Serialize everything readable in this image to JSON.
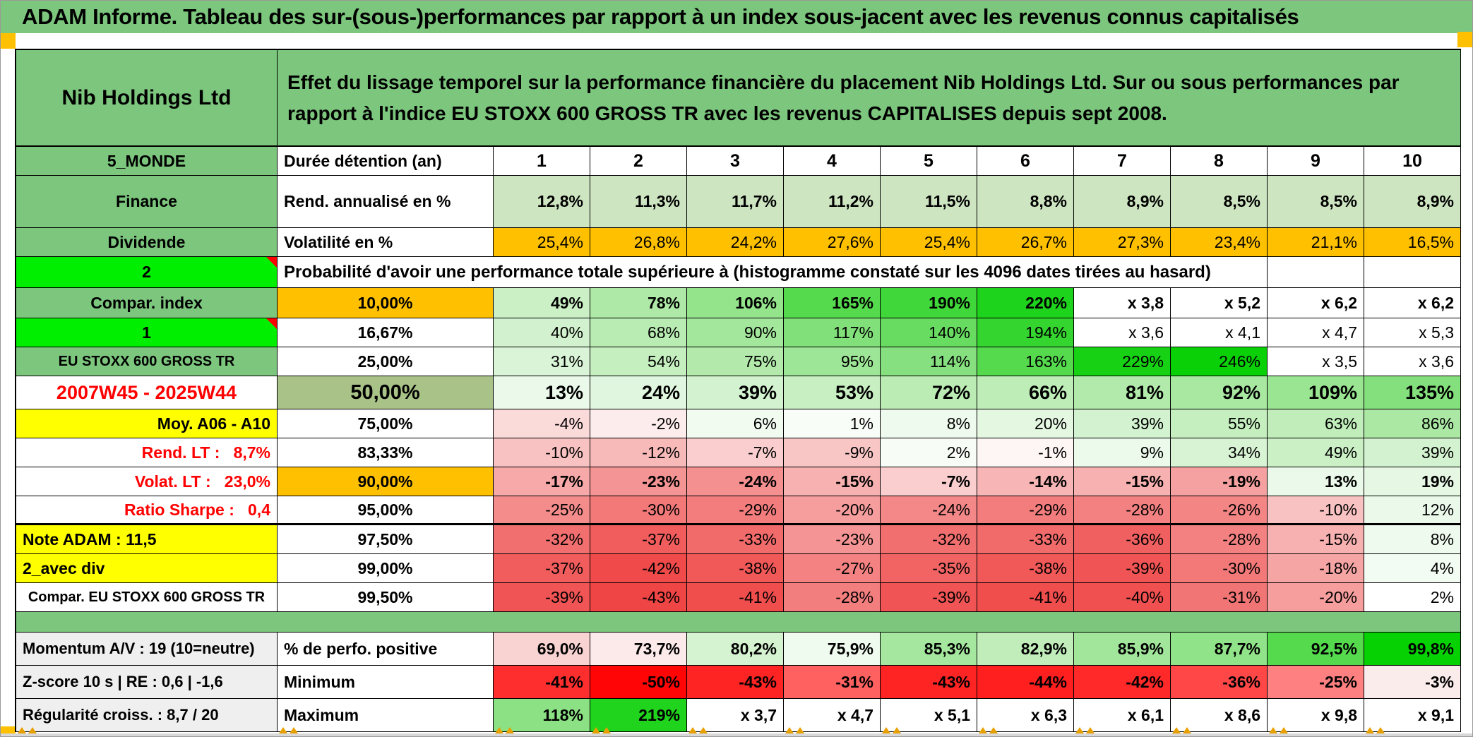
{
  "title": "ADAM Informe. Tableau des sur-(sous-)performances par rapport à un index sous-jacent avec les revenus connus capitalisés",
  "header": {
    "instrument": "Nib Holdings Ltd",
    "description": "Effet du lissage temporel sur la performance financière du placement Nib Holdings Ltd. Sur ou sous performances par rapport à l'indice EU STOXX 600 GROSS TR avec les revenus CAPITALISES depuis sept 2008."
  },
  "colors": {
    "green_label": "#7CC67D",
    "bright_green": "#00EE00",
    "orange": "#FFC000",
    "yellow": "#FFFF00",
    "olive_green": "#A9C287",
    "light_green_data": "#CEE5C2",
    "gray_label": "#EFEFEF",
    "red_text": "#FF0000"
  },
  "table": {
    "rows": [
      {
        "id": "duree",
        "left": {
          "t": "5_MONDE",
          "bg": "#7CC67D",
          "b": 1,
          "al": "c"
        },
        "mid": {
          "t": "Durée détention (an)",
          "b": 1,
          "al": "l"
        },
        "al": "c",
        "b": 1,
        "fs": 25,
        "v": [
          "1",
          "2",
          "3",
          "4",
          "5",
          "6",
          "7",
          "8",
          "9",
          "10"
        ],
        "bg": [
          "#FFFFFF",
          "#FFFFFF",
          "#FFFFFF",
          "#FFFFFF",
          "#FFFFFF",
          "#FFFFFF",
          "#FFFFFF",
          "#FFFFFF",
          "#FFFFFF",
          "#FFFFFF"
        ]
      },
      {
        "id": "rend",
        "left": {
          "t": "Finance",
          "bg": "#7CC67D",
          "b": 1,
          "al": "c"
        },
        "mid": {
          "t": "Rend. annualisé en %",
          "b": 1,
          "al": "l"
        },
        "b": 1,
        "v": [
          "12,8%",
          "11,3%",
          "11,7%",
          "11,2%",
          "11,5%",
          "8,8%",
          "8,9%",
          "8,5%",
          "8,5%",
          "8,9%"
        ],
        "bg": [
          "#CEE5C2",
          "#CEE5C2",
          "#CEE5C2",
          "#CEE5C2",
          "#CEE5C2",
          "#CEE5C2",
          "#CEE5C2",
          "#CEE5C2",
          "#CEE5C2",
          "#CEE5C2"
        ]
      },
      {
        "id": "vol",
        "left": {
          "t": "Dividende",
          "bg": "#7CC67D",
          "b": 1,
          "al": "c"
        },
        "mid": {
          "t": "Volatilité en %",
          "b": 1,
          "al": "l"
        },
        "v": [
          "25,4%",
          "26,8%",
          "24,2%",
          "27,6%",
          "25,4%",
          "26,7%",
          "27,3%",
          "23,4%",
          "21,1%",
          "16,5%"
        ],
        "bg": [
          "#FFC000",
          "#FFC000",
          "#FFC000",
          "#FFC000",
          "#FFC000",
          "#FFC000",
          "#FFC000",
          "#FFC000",
          "#FFC000",
          "#FFC000"
        ]
      },
      {
        "id": "proba",
        "type": "span",
        "left": {
          "t": "2",
          "bg": "#00EE00",
          "b": 1,
          "al": "c",
          "corner": 1
        },
        "span": {
          "t": "Probabilité d'avoir une performance totale supérieure à (histogramme constaté sur les 4096 dates tirées au hasard)",
          "b": 1,
          "al": "l",
          "fs": 24
        }
      },
      {
        "id": "p10",
        "left": {
          "t": "Compar. index",
          "bg": "#7CC67D",
          "b": 1,
          "al": "c"
        },
        "mid": {
          "t": "10,00%",
          "bg": "#FFC000",
          "b": 1,
          "al": "c"
        },
        "b": 1,
        "v": [
          "49%",
          "78%",
          "106%",
          "165%",
          "190%",
          "220%",
          "x 3,8",
          "x 5,2",
          "x 6,2",
          "x 6,2"
        ],
        "bg": [
          "#CBF0C6",
          "#AEE9A7",
          "#94E48C",
          "#55DA4E",
          "#3FD73A",
          "#1ED31B",
          "#FFFFFF",
          "#FFFFFF",
          "#FFFFFF",
          "#FFFFFF"
        ]
      },
      {
        "id": "p16",
        "left": {
          "t": "1",
          "bg": "#00EE00",
          "b": 1,
          "al": "c",
          "corner": 1
        },
        "mid": {
          "t": "16,67%",
          "b": 1,
          "al": "c"
        },
        "v": [
          "40%",
          "68%",
          "90%",
          "117%",
          "140%",
          "194%",
          "x 3,6",
          "x 4,1",
          "x 4,7",
          "x 5,3"
        ],
        "bg": [
          "#D2F1CE",
          "#B9ECB3",
          "#A3E79C",
          "#82E07A",
          "#68DC61",
          "#33D52E",
          "#FFFFFF",
          "#FFFFFF",
          "#FFFFFF",
          "#FFFFFF"
        ]
      },
      {
        "id": "p25",
        "left": {
          "t": "EU STOXX 600 GROSS TR",
          "bg": "#7CC67D",
          "b": 1,
          "al": "c",
          "fs": 20
        },
        "mid": {
          "t": "25,00%",
          "b": 1,
          "al": "c"
        },
        "v": [
          "31%",
          "54%",
          "75%",
          "95%",
          "114%",
          "163%",
          "229%",
          "246%",
          "x 3,5",
          "x 3,6"
        ],
        "bg": [
          "#DAF4D7",
          "#C6EFC0",
          "#B3EAAC",
          "#9EE697",
          "#87E07F",
          "#55DA4E",
          "#17D214",
          "#0AD008",
          "#FFFFFF",
          "#FFFFFF"
        ]
      },
      {
        "id": "p50",
        "left": {
          "t": "2007W45 - 2025W44",
          "fg": "#FF0000",
          "b": 1,
          "al": "c",
          "fs": 27
        },
        "mid": {
          "t": "50,00%",
          "bg": "#A9C287",
          "b": 1,
          "al": "c",
          "fs": 29
        },
        "b": 1,
        "fs": 27,
        "v": [
          "13%",
          "24%",
          "39%",
          "53%",
          "72%",
          "66%",
          "81%",
          "92%",
          "109%",
          "135%"
        ],
        "bg": [
          "#EAF9E9",
          "#E1F6DF",
          "#D3F2CF",
          "#C7EFC1",
          "#BAECB3",
          "#BEEDB8",
          "#B1EAAA",
          "#A8E8A1",
          "#99E591",
          "#84E07C"
        ]
      },
      {
        "id": "p75",
        "left": {
          "t": "Moy. A06 - A10",
          "bg": "#FFFF00",
          "b": 1,
          "al": "r"
        },
        "mid": {
          "t": "75,00%",
          "b": 1,
          "al": "c"
        },
        "v": [
          "-4%",
          "-2%",
          "6%",
          "1%",
          "8%",
          "20%",
          "39%",
          "55%",
          "63%",
          "86%"
        ],
        "bg": [
          "#FBDADA",
          "#FDECEC",
          "#F1FBF0",
          "#F9FDF8",
          "#EEFAED",
          "#E4F7E1",
          "#D3F2CF",
          "#C5EFBF",
          "#C0EDBA",
          "#ABE8A4"
        ]
      },
      {
        "id": "p83",
        "left": {
          "t": "Rend. LT :   8,7%",
          "fg": "#FF0000",
          "b": 1,
          "al": "r"
        },
        "mid": {
          "t": "83,33%",
          "b": 1,
          "al": "c"
        },
        "v": [
          "-10%",
          "-12%",
          "-7%",
          "-9%",
          "2%",
          "-1%",
          "9%",
          "34%",
          "49%",
          "39%"
        ],
        "bg": [
          "#F9C2C2",
          "#F8B9B9",
          "#FACECE",
          "#F9C6C6",
          "#F7FCF6",
          "#FEF5F5",
          "#ECFAEB",
          "#D8F3D4",
          "#CBF0C6",
          "#D3F2CF"
        ]
      },
      {
        "id": "p90",
        "left": {
          "t": "Volat. LT :   23,0%",
          "fg": "#FF0000",
          "b": 1,
          "al": "r"
        },
        "mid": {
          "t": "90,00%",
          "bg": "#FFC000",
          "b": 1,
          "al": "c"
        },
        "b": 1,
        "v": [
          "-17%",
          "-23%",
          "-24%",
          "-15%",
          "-7%",
          "-14%",
          "-15%",
          "-19%",
          "13%",
          "19%"
        ],
        "bg": [
          "#F7A9A9",
          "#F59494",
          "#F59090",
          "#F7B1B1",
          "#FACECE",
          "#F7B5B5",
          "#F7B1B1",
          "#F6A1A1",
          "#EAF9E9",
          "#E6F8E4"
        ]
      },
      {
        "id": "p95",
        "left": {
          "t": "Ratio Sharpe :   0,4",
          "fg": "#FF0000",
          "b": 1,
          "al": "r"
        },
        "mid": {
          "t": "95,00%",
          "b": 1,
          "al": "c"
        },
        "thick": 1,
        "v": [
          "-25%",
          "-30%",
          "-29%",
          "-20%",
          "-24%",
          "-29%",
          "-28%",
          "-26%",
          "-10%",
          "12%"
        ],
        "bg": [
          "#F48C8C",
          "#F37979",
          "#F37D7D",
          "#F69D9D",
          "#F48888",
          "#F37D7D",
          "#F38181",
          "#F48585",
          "#F9C2C2",
          "#EBF9EA"
        ]
      },
      {
        "id": "p975",
        "left": {
          "t": "Note ADAM : 11,5",
          "bg": "#FFFF00",
          "b": 1,
          "al": "l"
        },
        "mid": {
          "t": "97,50%",
          "b": 1,
          "al": "c"
        },
        "v": [
          "-32%",
          "-37%",
          "-33%",
          "-23%",
          "-32%",
          "-33%",
          "-36%",
          "-28%",
          "-15%",
          "8%"
        ],
        "bg": [
          "#F26F6F",
          "#F15C5C",
          "#F26B6B",
          "#F59494",
          "#F26F6F",
          "#F26B6B",
          "#F16060",
          "#F38181",
          "#F7B1B1",
          "#EEFAED"
        ]
      },
      {
        "id": "p99",
        "left": {
          "t": "2_avec div",
          "bg": "#FFFF00",
          "b": 1,
          "al": "l"
        },
        "mid": {
          "t": "99,00%",
          "b": 1,
          "al": "c"
        },
        "v": [
          "-37%",
          "-42%",
          "-38%",
          "-27%",
          "-35%",
          "-38%",
          "-39%",
          "-30%",
          "-18%",
          "4%"
        ],
        "bg": [
          "#F15C5C",
          "#F04A4A",
          "#F15858",
          "#F48282",
          "#F26464",
          "#F15858",
          "#F05454",
          "#F37979",
          "#F6A5A5",
          "#F3FCF2"
        ]
      },
      {
        "id": "p995",
        "left": {
          "t": "Compar. EU STOXX 600 GROSS TR",
          "b": 1,
          "al": "c",
          "fs": 20
        },
        "mid": {
          "t": "99,50%",
          "b": 1,
          "al": "c"
        },
        "v": [
          "-39%",
          "-43%",
          "-41%",
          "-28%",
          "-39%",
          "-41%",
          "-40%",
          "-31%",
          "-20%",
          "2%"
        ],
        "bg": [
          "#F05454",
          "#F04545",
          "#F04D4D",
          "#F37E7E",
          "#F05454",
          "#F04D4D",
          "#F05050",
          "#F27575",
          "#F69D9D",
          "#FEFFFE"
        ]
      },
      {
        "type": "sep"
      },
      {
        "id": "perfo",
        "left": {
          "t": "Momentum A/V : 19 (10=neutre)",
          "bg": "#EFEFEF",
          "b": 1,
          "al": "l",
          "fs": 22
        },
        "mid": {
          "t": "% de perfo. positive",
          "b": 1,
          "al": "l"
        },
        "b": 1,
        "v": [
          "69,0%",
          "73,7%",
          "80,2%",
          "75,9%",
          "85,3%",
          "82,9%",
          "85,9%",
          "87,7%",
          "92,5%",
          "99,8%"
        ],
        "bg": [
          "#F9D2D2",
          "#FCE9E9",
          "#D5F2D1",
          "#F0FBEF",
          "#A5E79E",
          "#C0EDBA",
          "#A2E69B",
          "#90E388",
          "#55DA4E",
          "#06D203"
        ]
      },
      {
        "id": "min",
        "left": {
          "t": "Z-score 10 s | RE : 0,6 | -1,6",
          "bg": "#EFEFEF",
          "b": 1,
          "al": "l",
          "fs": 22
        },
        "mid": {
          "t": "Minimum",
          "b": 1,
          "al": "l"
        },
        "b": 1,
        "v": [
          "-41%",
          "-50%",
          "-43%",
          "-31%",
          "-43%",
          "-44%",
          "-42%",
          "-36%",
          "-25%",
          "-3%"
        ],
        "bg": [
          "#FF2E2E",
          "#FF0505",
          "#FF2424",
          "#FF6161",
          "#FF2424",
          "#FF1F1F",
          "#FF2929",
          "#FF4747",
          "#FF8080",
          "#FBECEC"
        ]
      },
      {
        "id": "max",
        "left": {
          "t": "Régularité croiss. : 8,7 / 20",
          "bg": "#EFEFEF",
          "b": 1,
          "al": "l",
          "fs": 22
        },
        "mid": {
          "t": "Maximum",
          "b": 1,
          "al": "l"
        },
        "b": 1,
        "v": [
          "118%",
          "219%",
          "x 3,7",
          "x 4,7",
          "x 5,1",
          "x 6,3",
          "x 6,1",
          "x 8,6",
          "x 9,8",
          "x 9,1"
        ],
        "bg": [
          "#8BE183",
          "#20D31C",
          "#FFFFFF",
          "#FFFFFF",
          "#FFFFFF",
          "#FFFFFF",
          "#FFFFFF",
          "#FFFFFF",
          "#FFFFFF",
          "#FFFFFF"
        ]
      }
    ]
  }
}
